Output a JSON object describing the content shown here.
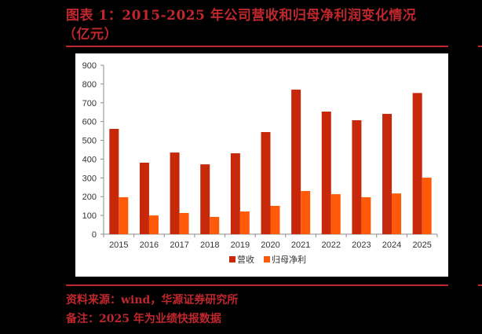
{
  "title": {
    "line1": "图表 1：2015-2025 年公司营收和归母净利润变化情况",
    "line2": "（亿元）"
  },
  "footer": {
    "source": "资料来源：wind，华源证券研究所",
    "note": "备注：2025 年为业绩快报数据"
  },
  "colors": {
    "revenue": "#C8280A",
    "net_profit": "#FF5A0A",
    "accent": "#C0272D",
    "background": "#000000"
  },
  "chart_data": {
    "type": "bar",
    "title": "2015-2025 年公司营收和归母净利润变化情况（亿元）",
    "xlabel": "",
    "ylabel": "",
    "ylim": [
      0,
      900
    ],
    "yticks": [
      0,
      100,
      200,
      300,
      400,
      500,
      600,
      700,
      800,
      900
    ],
    "grid": false,
    "legend_position": "bottom",
    "categories": [
      "2015",
      "2016",
      "2017",
      "2018",
      "2019",
      "2020",
      "2021",
      "2022",
      "2023",
      "2024",
      "2025"
    ],
    "series": [
      {
        "name": "营收",
        "color": "#C8280A",
        "values": [
          561,
          381,
          435,
          372,
          431,
          544,
          770,
          653,
          607,
          641,
          752
        ]
      },
      {
        "name": "归母净利",
        "color": "#FF5A0A",
        "values": [
          197,
          100,
          113,
          92,
          121,
          151,
          230,
          213,
          197,
          217,
          301
        ]
      }
    ]
  }
}
